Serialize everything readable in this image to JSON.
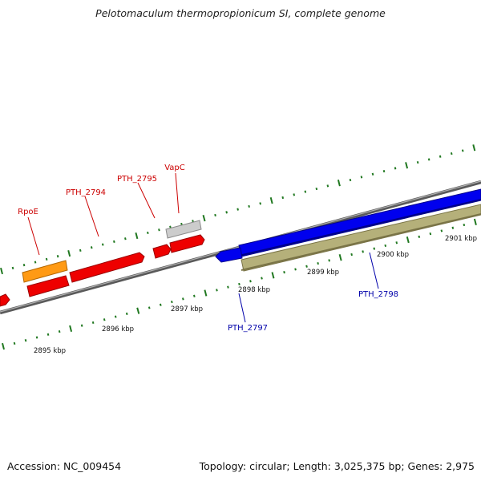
{
  "title": "Pelotomaculum thermopropionicum SI, complete genome",
  "footer": {
    "accession": "Accession: NC_009454",
    "stats": "Topology: circular; Length: 3,025,375 bp; Genes: 2,975"
  },
  "colors": {
    "backbone": "#808080",
    "forward_gene": "#ff0000",
    "reverse_gene": "#0000ff",
    "rna_gene": "#ffa500",
    "pseudo_gene": "#c8c8c8",
    "other_feature": "#b5b07a",
    "tick": "#207820",
    "forward_label": "#cc0000",
    "reverse_label": "#0000aa"
  },
  "tick_labels": {
    "inner": [
      "2895 kbp",
      "2896 kbp",
      "2897 kbp",
      "2898 kbp"
    ],
    "outer": [
      "2899 kbp",
      "2900 kbp",
      "2901 kbp"
    ]
  },
  "gene_labels": {
    "forward": [
      "RpoE",
      "PTH_2794",
      "PTH_2795",
      "VapC"
    ],
    "reverse": [
      "PTH_2797",
      "PTH_2798"
    ]
  }
}
